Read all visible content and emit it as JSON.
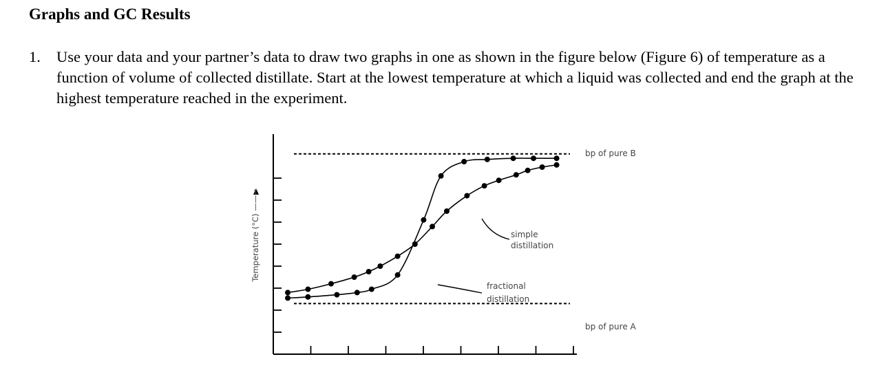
{
  "heading": "Graphs and GC Results",
  "question": {
    "number": "1.",
    "text": "Use your data and your partner’s data to draw two graphs in one as shown in the figure below (Figure 6) of temperature as a function of volume of collected distillate.  Start at the lowest temperature at which a liquid was collected and end the graph at the highest temperature reached in the experiment."
  },
  "figure": {
    "ylabel": "Temperature (°C) ——→",
    "label_bp_b": "bp of pure B",
    "label_bp_a": "bp of pure A",
    "label_simple": [
      "simple",
      "distillation"
    ],
    "label_fractional": [
      "fractional",
      "distillation"
    ]
  },
  "chart_data": {
    "type": "line",
    "xlabel": "",
    "ylabel": "Temperature (°C) ——→",
    "grid": false,
    "series": [
      {
        "name": "simple distillation",
        "points": [
          [
            0.5,
            5.6
          ],
          [
            1.2,
            5.9
          ],
          [
            2.0,
            6.4
          ],
          [
            2.8,
            7.0
          ],
          [
            3.3,
            7.5
          ],
          [
            3.7,
            8.0
          ],
          [
            4.3,
            8.9
          ],
          [
            4.9,
            10.0
          ],
          [
            5.5,
            11.6
          ],
          [
            6.0,
            13.0
          ],
          [
            6.7,
            14.4
          ],
          [
            7.3,
            15.3
          ],
          [
            7.8,
            15.8
          ],
          [
            8.4,
            16.3
          ],
          [
            8.8,
            16.7
          ],
          [
            9.3,
            17.0
          ],
          [
            9.8,
            17.2
          ]
        ]
      },
      {
        "name": "fractional distillation",
        "points": [
          [
            0.5,
            5.1
          ],
          [
            1.2,
            5.2
          ],
          [
            2.2,
            5.4
          ],
          [
            2.9,
            5.6
          ],
          [
            3.4,
            5.9
          ],
          [
            4.3,
            7.2
          ],
          [
            5.2,
            12.2
          ],
          [
            5.8,
            16.2
          ],
          [
            6.6,
            17.5
          ],
          [
            7.4,
            17.7
          ],
          [
            8.3,
            17.8
          ],
          [
            9.0,
            17.8
          ],
          [
            9.8,
            17.8
          ]
        ]
      }
    ],
    "reference_lines": [
      {
        "name": "bp of pure B",
        "y": 18.2
      },
      {
        "name": "bp of pure A",
        "y": 4.6
      }
    ],
    "xlim": [
      0,
      10.5
    ],
    "ylim": [
      0,
      20
    ]
  }
}
